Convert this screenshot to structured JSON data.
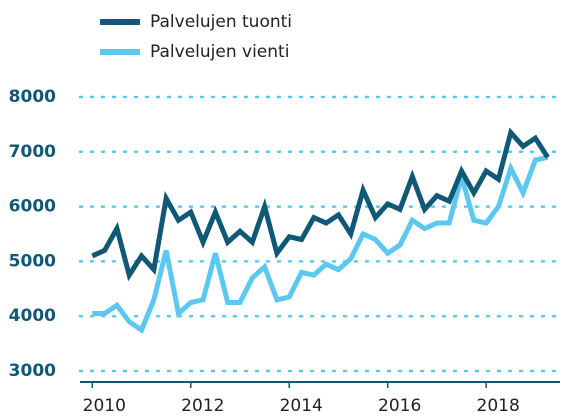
{
  "chart_data": {
    "type": "line",
    "x": [
      2010,
      2010.25,
      2010.5,
      2010.75,
      2011,
      2011.25,
      2011.5,
      2011.75,
      2012,
      2012.25,
      2012.5,
      2012.75,
      2013,
      2013.25,
      2013.5,
      2013.75,
      2014,
      2014.25,
      2014.5,
      2014.75,
      2015,
      2015.25,
      2015.5,
      2015.75,
      2016,
      2016.25,
      2016.5,
      2016.75,
      2017,
      2017.25,
      2017.5,
      2017.75,
      2018,
      2018.25,
      2018.5,
      2018.75,
      2019,
      2019.25
    ],
    "series": [
      {
        "name": "Palvelujen tuonti",
        "color": "#0f5876",
        "values": [
          5100,
          5200,
          5600,
          4750,
          5100,
          4850,
          6150,
          5750,
          5900,
          5350,
          5900,
          5350,
          5550,
          5350,
          6000,
          5150,
          5450,
          5400,
          5800,
          5700,
          5850,
          5500,
          6300,
          5800,
          6050,
          5950,
          6550,
          5950,
          6200,
          6100,
          6650,
          6250,
          6650,
          6500,
          7350,
          7100,
          7250,
          6900
        ]
      },
      {
        "name": "Palvelujen vienti",
        "color": "#5cc8f0",
        "values": [
          4050,
          4050,
          4200,
          3900,
          3750,
          4300,
          5200,
          4050,
          4250,
          4300,
          5150,
          4250,
          4250,
          4700,
          4900,
          4300,
          4350,
          4800,
          4750,
          4950,
          4850,
          5050,
          5500,
          5400,
          5150,
          5300,
          5750,
          5600,
          5700,
          5700,
          6550,
          5750,
          5700,
          6000,
          6700,
          6250,
          6850,
          6900
        ]
      }
    ],
    "xlim": [
      2009.75,
      2019.5
    ],
    "xticks": [
      2010,
      2012,
      2014,
      2016,
      2018
    ],
    "ylim": [
      2800,
      8000
    ],
    "yticks": [
      3000,
      4000,
      5000,
      6000,
      7000,
      8000
    ],
    "grid": true,
    "legend": "top-left"
  }
}
